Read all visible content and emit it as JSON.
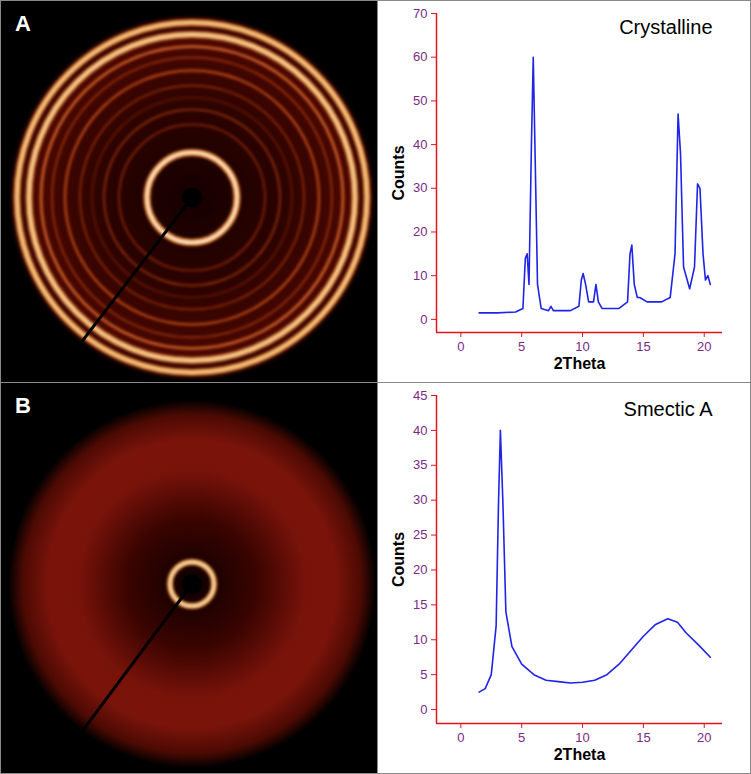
{
  "images": [
    {
      "label": "A"
    },
    {
      "label": "B"
    }
  ],
  "chart_data": [
    {
      "type": "line",
      "title": "Crystalline",
      "x_label": "2Theta",
      "y_label": "Counts",
      "color": "#1f24e6",
      "x": [
        1.5,
        3,
        4.5,
        5.1,
        5.3,
        5.45,
        5.6,
        5.8,
        5.95,
        6.1,
        6.3,
        6.6,
        7.2,
        7.4,
        7.6,
        9,
        9.7,
        9.9,
        10.05,
        10.25,
        10.5,
        10.9,
        11.1,
        11.3,
        11.6,
        13,
        13.7,
        13.9,
        14.05,
        14.25,
        14.5,
        14.7,
        15.3,
        16.5,
        17.2,
        17.6,
        17.85,
        18.05,
        18.3,
        18.8,
        19.2,
        19.45,
        19.65,
        19.9,
        20.1,
        20.3,
        20.5
      ],
      "values": [
        1.5,
        1.5,
        1.7,
        2.5,
        14,
        15,
        8,
        40,
        60,
        38,
        8,
        2.5,
        2,
        3,
        2,
        2,
        3,
        9,
        10.5,
        8,
        4,
        4,
        8,
        4,
        2.5,
        2.5,
        4,
        15,
        17,
        8,
        5,
        5,
        4,
        4,
        5,
        15,
        47,
        38,
        12,
        7,
        12,
        31,
        30,
        15,
        9,
        10,
        8
      ],
      "xlim": [
        -2,
        21.5
      ],
      "ylim": [
        -3,
        70
      ],
      "xticks": [
        0,
        5,
        10,
        15,
        20
      ],
      "yticks": [
        0,
        10,
        20,
        30,
        40,
        50,
        60,
        70
      ]
    },
    {
      "type": "line",
      "title": "Smectic A",
      "x_label": "2Theta",
      "y_label": "Counts",
      "color": "#1f24e6",
      "x": [
        1.5,
        2,
        2.5,
        2.9,
        3.1,
        3.25,
        3.45,
        3.7,
        4.2,
        5,
        6,
        7,
        8,
        9,
        10,
        11,
        12,
        13,
        14,
        15,
        16,
        17,
        17.8,
        18.5,
        19.5,
        20.5
      ],
      "values": [
        2.5,
        3,
        5,
        12,
        30,
        40,
        30,
        14,
        9,
        6.5,
        5,
        4.2,
        4,
        3.8,
        3.9,
        4.2,
        5,
        6.5,
        8.5,
        10.5,
        12.2,
        13,
        12.5,
        11,
        9.3,
        7.5
      ],
      "xlim": [
        -2,
        21.5
      ],
      "ylim": [
        -2,
        45
      ],
      "xticks": [
        0,
        5,
        10,
        15,
        20
      ],
      "yticks": [
        0,
        5,
        10,
        15,
        20,
        25,
        30,
        35,
        40,
        45
      ]
    }
  ]
}
